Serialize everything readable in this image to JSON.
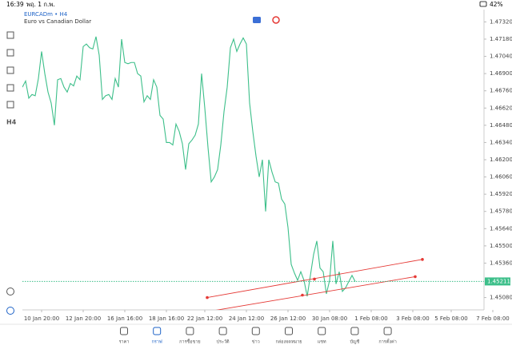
{
  "status_bar": {
    "time": "16:39",
    "date": "พฤ. 1 ก.พ.",
    "battery": "42%"
  },
  "toolbar": {
    "timeframe": "H4"
  },
  "chart_data": {
    "type": "line",
    "title": "EURCADm • H4",
    "subtitle": "Euro vs Canadian Dollar",
    "x": [
      0,
      1,
      2,
      3,
      4,
      5,
      6,
      7,
      8,
      9,
      10,
      11,
      12,
      13,
      14,
      15,
      16,
      17,
      18,
      19,
      20,
      21,
      22,
      23,
      24,
      25,
      26,
      27,
      28,
      29,
      30,
      31,
      32,
      33,
      34,
      35,
      36,
      37,
      38,
      39,
      40,
      41,
      42,
      43,
      44,
      45,
      46,
      47,
      48,
      49,
      50,
      51,
      52,
      53,
      54,
      55,
      56,
      57,
      58,
      59,
      60,
      61,
      62,
      63,
      64,
      65,
      66,
      67,
      68,
      69,
      70,
      71,
      72,
      73,
      74,
      75,
      76,
      77,
      78,
      79,
      80,
      81,
      82,
      83,
      84,
      85,
      86,
      87,
      88,
      89,
      90,
      91,
      92,
      93,
      94,
      95,
      96,
      97,
      98,
      99,
      100,
      101,
      102,
      103,
      104
    ],
    "series": [
      {
        "color": "#3dbf8a",
        "values": [
          1.4679,
          1.4684,
          1.467,
          1.4673,
          1.4672,
          1.4686,
          1.4708,
          1.469,
          1.4675,
          1.4666,
          1.4648,
          1.4685,
          1.4686,
          1.4679,
          1.4675,
          1.4682,
          1.468,
          1.4688,
          1.4685,
          1.4712,
          1.4714,
          1.4711,
          1.471,
          1.472,
          1.4705,
          1.4669,
          1.4672,
          1.4673,
          1.4669,
          1.4686,
          1.4679,
          1.4718,
          1.4699,
          1.4698,
          1.4699,
          1.4699,
          1.469,
          1.4688,
          1.4667,
          1.4672,
          1.4669,
          1.4685,
          1.4679,
          1.4656,
          1.4653,
          1.4634,
          1.4634,
          1.4632,
          1.4649,
          1.4643,
          1.4633,
          1.4612,
          1.4633,
          1.4636,
          1.464,
          1.4649,
          1.469,
          1.4662,
          1.463,
          1.4602,
          1.4606,
          1.4612,
          1.4632,
          1.4659,
          1.4679,
          1.4711,
          1.4718,
          1.4708,
          1.4714,
          1.4719,
          1.4714,
          1.4666,
          1.4643,
          1.4623,
          1.4606,
          1.462,
          1.4578,
          1.462,
          1.461,
          1.4602,
          1.4601,
          1.4588,
          1.4584,
          1.4565,
          1.4535,
          1.4528,
          1.4522,
          1.4529,
          1.4522,
          1.4509,
          1.4526,
          1.4543,
          1.4554,
          1.4532,
          1.4529,
          1.4511,
          1.4522,
          1.4554,
          1.4519,
          1.4529,
          1.4513,
          1.4516,
          1.4521,
          1.4526,
          1.4521
        ]
      }
    ],
    "trendlines": [
      {
        "color": "#e53935",
        "x": [
          57.75,
          91.25,
          125
        ],
        "values": [
          1.4508,
          1.4523,
          1.4539
        ]
      },
      {
        "color": "#e53935",
        "x": [
          52,
          87.5,
          122.75
        ],
        "values": [
          1.4494,
          1.451,
          1.4525
        ]
      }
    ],
    "current_price": {
      "value": 1.45211,
      "label": "1.45211",
      "color": "#3dbf8a"
    },
    "xlim": [
      0,
      144
    ],
    "ylim": [
      1.4498,
      1.4742
    ],
    "xticks": [
      {
        "value": 6,
        "label": "10 Jan 20:00"
      },
      {
        "value": 19,
        "label": "12 Jan 20:00"
      },
      {
        "value": 32,
        "label": "16 Jan 16:00"
      },
      {
        "value": 45,
        "label": "18 Jan 16:00"
      },
      {
        "value": 57,
        "label": "22 Jan 12:00"
      },
      {
        "value": 70,
        "label": "24 Jan 12:00"
      },
      {
        "value": 83,
        "label": "26 Jan 12:00"
      },
      {
        "value": 96,
        "label": "30 Jan 08:00"
      },
      {
        "value": 109,
        "label": "1 Feb 08:00"
      },
      {
        "value": 122,
        "label": "3 Feb 08:00"
      },
      {
        "value": 134,
        "label": "5 Feb 08:00"
      },
      {
        "value": 147,
        "label": "7 Feb 08:00"
      }
    ],
    "yticks": [
      {
        "value": 1.4732,
        "label": "1.47320"
      },
      {
        "value": 1.4718,
        "label": "1.47180"
      },
      {
        "value": 1.4704,
        "label": "1.47040"
      },
      {
        "value": 1.469,
        "label": "1.46900"
      },
      {
        "value": 1.4676,
        "label": "1.46760"
      },
      {
        "value": 1.4662,
        "label": "1.46620"
      },
      {
        "value": 1.4648,
        "label": "1.46480"
      },
      {
        "value": 1.4634,
        "label": "1.46340"
      },
      {
        "value": 1.462,
        "label": "1.46200"
      },
      {
        "value": 1.4606,
        "label": "1.46060"
      },
      {
        "value": 1.4592,
        "label": "1.45920"
      },
      {
        "value": 1.4578,
        "label": "1.45780"
      },
      {
        "value": 1.4564,
        "label": "1.45640"
      },
      {
        "value": 1.455,
        "label": "1.45500"
      },
      {
        "value": 1.4536,
        "label": "1.45360"
      },
      {
        "value": 1.4508,
        "label": "1.45080"
      }
    ]
  },
  "nav": {
    "active": 1,
    "items": [
      "ราคา",
      "กราฟ",
      "การซื้อขาย",
      "ประวัติ",
      "ข่าว",
      "กล่องจดหมาย",
      "แชท",
      "บัญชี",
      "การตั้งค่า"
    ]
  }
}
